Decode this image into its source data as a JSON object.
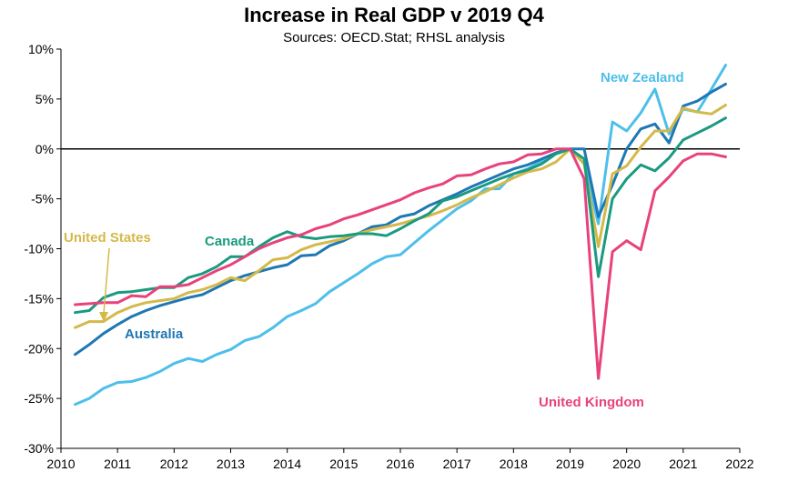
{
  "chart_data": {
    "type": "line",
    "title": "Increase in Real GDP v 2019 Q4",
    "subtitle": "Sources: OECD.Stat; RHSL analysis",
    "xlabel": "",
    "ylabel": "",
    "xlim": [
      2010,
      2022
    ],
    "ylim": [
      -30,
      10
    ],
    "x_ticks": [
      2010,
      2011,
      2012,
      2013,
      2014,
      2015,
      2016,
      2017,
      2018,
      2019,
      2020,
      2021,
      2022
    ],
    "x_tick_labels": [
      "2010",
      "2011",
      "2012",
      "2013",
      "2014",
      "2015",
      "2016",
      "2017",
      "2018",
      "2019",
      "2020",
      "2021",
      "2022"
    ],
    "y_ticks": [
      -30,
      -25,
      -20,
      -15,
      -10,
      -5,
      0,
      5,
      10
    ],
    "y_tick_labels": [
      "-30%",
      "-25%",
      "-20%",
      "-15%",
      "-10%",
      "-5%",
      "0%",
      "5%",
      "10%"
    ],
    "zero_line": true,
    "grid": false,
    "x": [
      2010.25,
      2010.5,
      2010.75,
      2011.0,
      2011.25,
      2011.5,
      2011.75,
      2012.0,
      2012.25,
      2012.5,
      2012.75,
      2013.0,
      2013.25,
      2013.5,
      2013.75,
      2014.0,
      2014.25,
      2014.5,
      2014.75,
      2015.0,
      2015.25,
      2015.5,
      2015.75,
      2016.0,
      2016.25,
      2016.5,
      2016.75,
      2017.0,
      2017.25,
      2017.5,
      2017.75,
      2018.0,
      2018.25,
      2018.5,
      2018.75,
      2019.0,
      2019.25,
      2019.5,
      2019.75,
      2020.0,
      2020.25,
      2020.5,
      2020.75,
      2021.0,
      2021.25,
      2021.5,
      2021.75
    ],
    "series": [
      {
        "name": "New Zealand",
        "color": "#4dbfea",
        "values": [
          -25.6,
          -25.0,
          -24.0,
          -23.4,
          -23.3,
          -22.9,
          -22.3,
          -21.5,
          -21.0,
          -21.3,
          -20.6,
          -20.1,
          -19.2,
          -18.8,
          -17.9,
          -16.8,
          -16.2,
          -15.5,
          -14.3,
          -13.4,
          -12.5,
          -11.5,
          -10.8,
          -10.6,
          -9.4,
          -8.2,
          -7.1,
          -6.0,
          -5.2,
          -4.0,
          -4.0,
          -2.5,
          -2.0,
          -1.2,
          -0.4,
          0.0,
          -1.5,
          -7.5,
          2.7,
          1.8,
          3.6,
          6.0,
          1.5,
          4.0,
          3.7,
          6.0,
          8.4
        ]
      },
      {
        "name": "Australia",
        "color": "#1f77b4",
        "values": [
          -20.6,
          -19.6,
          -18.5,
          -17.6,
          -16.8,
          -16.2,
          -15.7,
          -15.3,
          -14.9,
          -14.6,
          -13.9,
          -13.2,
          -12.7,
          -12.3,
          -11.9,
          -11.6,
          -10.7,
          -10.6,
          -9.7,
          -9.2,
          -8.5,
          -7.8,
          -7.6,
          -6.8,
          -6.5,
          -5.7,
          -5.1,
          -4.5,
          -3.8,
          -3.2,
          -2.6,
          -2.0,
          -1.6,
          -1.0,
          -0.4,
          0.0,
          0.0,
          -6.8,
          -3.6,
          0.0,
          2.0,
          2.5,
          0.6,
          4.3,
          4.8,
          5.7,
          6.5
        ]
      },
      {
        "name": "United States",
        "color": "#d4b94a",
        "values": [
          -17.9,
          -17.3,
          -17.3,
          -16.4,
          -15.8,
          -15.4,
          -15.2,
          -15.0,
          -14.4,
          -14.1,
          -13.6,
          -12.9,
          -13.2,
          -12.2,
          -11.1,
          -10.9,
          -10.1,
          -9.6,
          -9.3,
          -9.0,
          -8.5,
          -8.1,
          -7.8,
          -7.5,
          -7.1,
          -6.7,
          -6.2,
          -5.6,
          -4.9,
          -4.3,
          -3.6,
          -2.9,
          -2.3,
          -2.0,
          -1.3,
          0.0,
          -1.5,
          -9.8,
          -2.5,
          -1.7,
          0.2,
          1.8,
          1.8,
          4.1,
          3.7,
          3.5,
          4.4
        ]
      },
      {
        "name": "Canada",
        "color": "#1a9a7f",
        "values": [
          -16.4,
          -16.2,
          -14.9,
          -14.4,
          -14.3,
          -14.1,
          -13.9,
          -13.9,
          -12.9,
          -12.5,
          -11.8,
          -10.8,
          -10.8,
          -9.8,
          -8.9,
          -8.3,
          -8.8,
          -9.0,
          -8.8,
          -8.7,
          -8.5,
          -8.5,
          -8.7,
          -8.0,
          -7.2,
          -6.5,
          -5.2,
          -4.8,
          -4.2,
          -3.6,
          -3.0,
          -2.5,
          -2.1,
          -1.5,
          -0.5,
          0.0,
          -1.0,
          -12.8,
          -5.0,
          -3.0,
          -1.6,
          -2.2,
          -0.9,
          0.9,
          1.6,
          2.3,
          3.1
        ]
      },
      {
        "name": "United Kingdom",
        "color": "#e8427c",
        "values": [
          -15.6,
          -15.5,
          -15.4,
          -15.4,
          -14.7,
          -14.8,
          -13.8,
          -13.8,
          -13.6,
          -12.9,
          -12.2,
          -11.6,
          -10.8,
          -10.0,
          -9.4,
          -8.9,
          -8.6,
          -8.0,
          -7.6,
          -7.0,
          -6.6,
          -6.1,
          -5.6,
          -5.1,
          -4.4,
          -3.9,
          -3.5,
          -2.7,
          -2.6,
          -2.0,
          -1.5,
          -1.3,
          -0.6,
          -0.5,
          0.0,
          0.0,
          -3.0,
          -23.0,
          -10.3,
          -9.2,
          -10.1,
          -4.2,
          -2.8,
          -1.2,
          -0.5,
          -0.5,
          -0.8
        ]
      }
    ],
    "annotations": [
      {
        "text": "New Zealand",
        "series": "New Zealand"
      },
      {
        "text": "Australia",
        "series": "Australia"
      },
      {
        "text": "United States",
        "series": "United States"
      },
      {
        "text": "Canada",
        "series": "Canada"
      },
      {
        "text": "United Kingdom",
        "series": "United Kingdom"
      }
    ]
  }
}
